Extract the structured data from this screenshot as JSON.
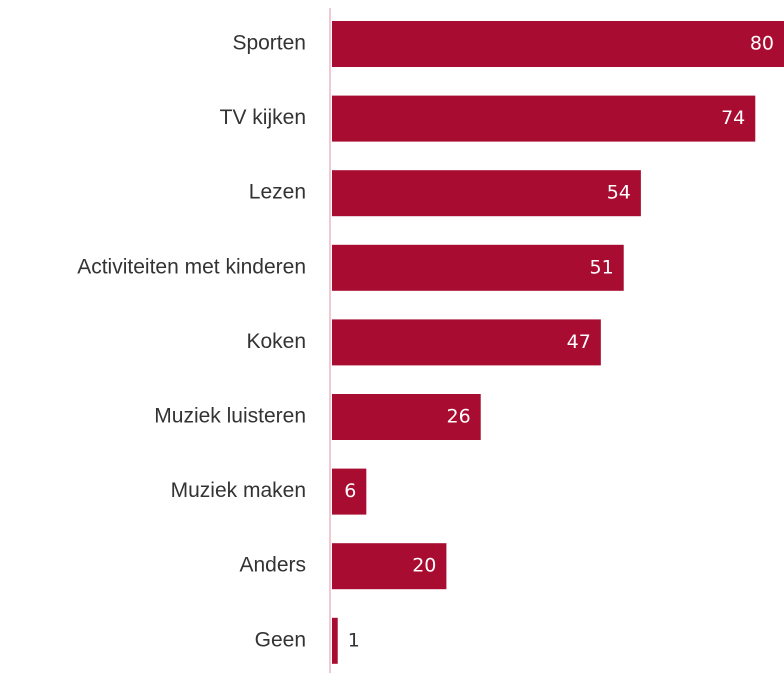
{
  "chart_data": {
    "type": "bar",
    "orientation": "horizontal",
    "categories": [
      "Sporten",
      "TV kijken",
      "Lezen",
      "Activiteiten met kinderen",
      "Koken",
      "Muziek luisteren",
      "Muziek maken",
      "Anders",
      "Geen"
    ],
    "values": [
      80,
      74,
      54,
      51,
      47,
      26,
      6,
      20,
      1
    ],
    "color": "#a80c30"
  }
}
